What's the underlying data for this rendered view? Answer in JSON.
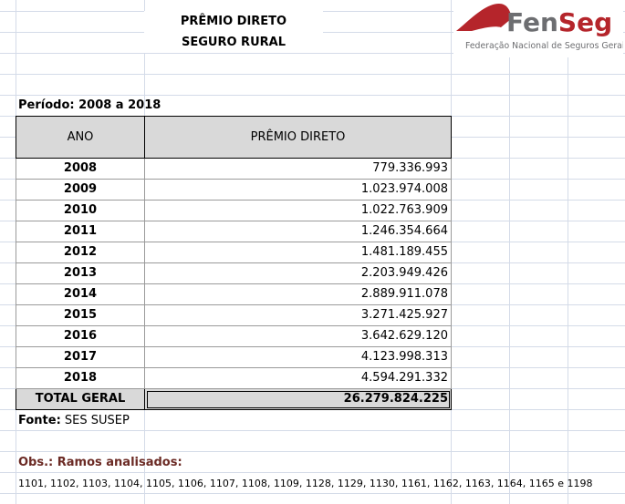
{
  "header": {
    "title": "PRÊMIO DIRETO",
    "subtitle": "SEGURO RURAL"
  },
  "logo": {
    "name": "FenSeg",
    "name_part1": "Fen",
    "name_part2": "Seg",
    "tagline": "Federação Nacional de Seguros Gerais",
    "colors": {
      "red": "#b5252b",
      "gray": "#6d6e71"
    }
  },
  "period": "Período: 2008 a 2018",
  "table": {
    "columns": [
      "ANO",
      "PRÊMIO DIRETO"
    ],
    "rows": [
      {
        "year": "2008",
        "value": "779.336.993"
      },
      {
        "year": "2009",
        "value": "1.023.974.008"
      },
      {
        "year": "2010",
        "value": "1.022.763.909"
      },
      {
        "year": "2011",
        "value": "1.246.354.664"
      },
      {
        "year": "2012",
        "value": "1.481.189.455"
      },
      {
        "year": "2013",
        "value": "2.203.949.426"
      },
      {
        "year": "2014",
        "value": "2.889.911.078"
      },
      {
        "year": "2015",
        "value": "3.271.425.927"
      },
      {
        "year": "2016",
        "value": "3.642.629.120"
      },
      {
        "year": "2017",
        "value": "4.123.998.313"
      },
      {
        "year": "2018",
        "value": "4.594.291.332"
      }
    ],
    "total_label": "TOTAL GERAL",
    "total_value": "26.279.824.225"
  },
  "source": {
    "label": "Fonte:",
    "value": "SES SUSEP"
  },
  "obs": {
    "label": "Obs.: Ramos analisados:",
    "codes": "1101, 1102, 1103, 1104, 1105, 1106, 1107, 1108, 1109, 1128, 1129, 1130, 1161, 1162, 1163, 1164, 1165 e 1198"
  }
}
